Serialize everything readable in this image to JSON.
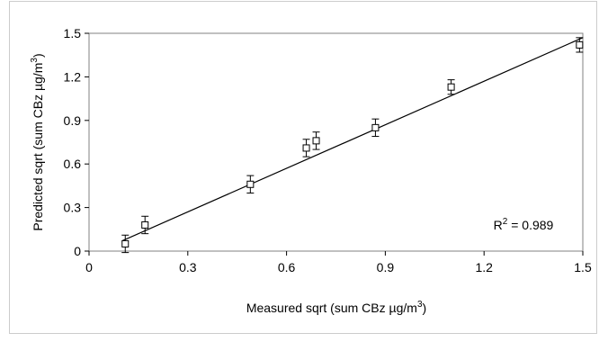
{
  "chart_data": {
    "type": "scatter",
    "title": "",
    "xlabel": "Measured sqrt (sum CBz µg/m",
    "xlabel_sup": "3",
    "xlabel_tail": ")",
    "ylabel": "Predicted sqrt (sum CBz µg/m",
    "ylabel_sup": "3",
    "ylabel_tail": ")",
    "xlim": [
      0,
      1.5
    ],
    "ylim": [
      0,
      1.5
    ],
    "x_ticks": [
      "0",
      "0.3",
      "0.6",
      "0.9",
      "1.2",
      "1.5"
    ],
    "y_ticks": [
      "0",
      "0.3",
      "0.6",
      "0.9",
      "1.2",
      "1.5"
    ],
    "grid": false,
    "annotation": {
      "prefix": "R",
      "sup": "2",
      "suffix": " = 0.989"
    },
    "points": [
      {
        "x": 0.11,
        "y": 0.05,
        "err": 0.06
      },
      {
        "x": 0.17,
        "y": 0.18,
        "err": 0.06
      },
      {
        "x": 0.49,
        "y": 0.46,
        "err": 0.06
      },
      {
        "x": 0.66,
        "y": 0.71,
        "err": 0.06
      },
      {
        "x": 0.69,
        "y": 0.76,
        "err": 0.06
      },
      {
        "x": 0.87,
        "y": 0.85,
        "err": 0.06
      },
      {
        "x": 1.1,
        "y": 1.13,
        "err": 0.05
      },
      {
        "x": 1.49,
        "y": 1.42,
        "err": 0.05
      }
    ],
    "fit_line": {
      "x": [
        0.1,
        1.5
      ],
      "y": [
        0.07,
        1.47
      ]
    }
  }
}
